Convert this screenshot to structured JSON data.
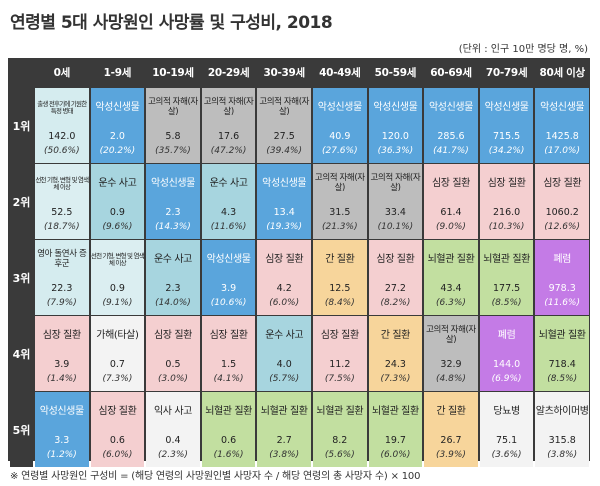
{
  "title": "연령별 5대 사망원인 사망률 및 구성비, 2018",
  "unit": "(단위 : 인구 10만 명당 명, %)",
  "footnote": "※ 연령별 사망원인 구성비 = (해당 연령의 사망원인별 사망자 수 / 해당 연령의 총 사망자 수) × 100",
  "colors": {
    "cancer": "#5aa5dc",
    "heart": "#f4cfd0",
    "transport": "#a7d5df",
    "suicide": "#bdbdbd",
    "cerebro": "#c2dfa0",
    "liver": "#f7d59b",
    "pneumonia": "#c47be6",
    "perinatal": "#d5ecef",
    "congenital": "#dbeef1",
    "sids": "#d5ecef",
    "fall": "#f3f3f3",
    "diabetes": "#f3f3f3",
    "alzheimer": "#f3f3f3",
    "assault": "#f3f3f3"
  },
  "chart_data": {
    "type": "table",
    "title": "연령별 5대 사망원인 사망률 및 구성비, 2018",
    "columns": [
      "0세",
      "1-9세",
      "10-19세",
      "20-29세",
      "30-39세",
      "40-49세",
      "50-59세",
      "60-69세",
      "70-79세",
      "80세 이상"
    ],
    "row_labels": [
      "1위",
      "2위",
      "3위",
      "4위",
      "5위"
    ],
    "rows": [
      [
        {
          "cause": "출생 전후기에 기원한 특정 병태",
          "cat": "perinatal",
          "rate": "142.0",
          "pct": "(50.6%)"
        },
        {
          "cause": "악성신생물",
          "cat": "cancer",
          "rate": "2.0",
          "pct": "(20.2%)"
        },
        {
          "cause": "고의적 자해(자살)",
          "cat": "suicide",
          "rate": "5.8",
          "pct": "(35.7%)"
        },
        {
          "cause": "고의적 자해(자살)",
          "cat": "suicide",
          "rate": "17.6",
          "pct": "(47.2%)"
        },
        {
          "cause": "고의적 자해(자살)",
          "cat": "suicide",
          "rate": "27.5",
          "pct": "(39.4%)"
        },
        {
          "cause": "악성신생물",
          "cat": "cancer",
          "rate": "40.9",
          "pct": "(27.6%)"
        },
        {
          "cause": "악성신생물",
          "cat": "cancer",
          "rate": "120.0",
          "pct": "(36.3%)"
        },
        {
          "cause": "악성신생물",
          "cat": "cancer",
          "rate": "285.6",
          "pct": "(41.7%)"
        },
        {
          "cause": "악성신생물",
          "cat": "cancer",
          "rate": "715.5",
          "pct": "(34.2%)"
        },
        {
          "cause": "악성신생물",
          "cat": "cancer",
          "rate": "1425.8",
          "pct": "(17.0%)"
        }
      ],
      [
        {
          "cause": "선천 기형, 변형 및 염색체 이상",
          "cat": "congenital",
          "rate": "52.5",
          "pct": "(18.7%)"
        },
        {
          "cause": "운수 사고",
          "cat": "transport",
          "rate": "0.9",
          "pct": "(9.6%)"
        },
        {
          "cause": "악성신생물",
          "cat": "cancer",
          "rate": "2.3",
          "pct": "(14.3%)"
        },
        {
          "cause": "운수 사고",
          "cat": "transport",
          "rate": "4.3",
          "pct": "(11.6%)"
        },
        {
          "cause": "악성신생물",
          "cat": "cancer",
          "rate": "13.4",
          "pct": "(19.3%)"
        },
        {
          "cause": "고의적 자해(자살)",
          "cat": "suicide",
          "rate": "31.5",
          "pct": "(21.3%)"
        },
        {
          "cause": "고의적 자해(자살)",
          "cat": "suicide",
          "rate": "33.4",
          "pct": "(10.1%)"
        },
        {
          "cause": "심장 질환",
          "cat": "heart",
          "rate": "61.4",
          "pct": "(9.0%)"
        },
        {
          "cause": "심장 질환",
          "cat": "heart",
          "rate": "216.0",
          "pct": "(10.3%)"
        },
        {
          "cause": "심장 질환",
          "cat": "heart",
          "rate": "1060.2",
          "pct": "(12.6%)"
        }
      ],
      [
        {
          "cause": "영아 돌연사 증후군",
          "cat": "sids",
          "rate": "22.3",
          "pct": "(7.9%)"
        },
        {
          "cause": "선천 기형, 변형 및 염색체 이상",
          "cat": "congenital",
          "rate": "0.9",
          "pct": "(9.1%)"
        },
        {
          "cause": "운수 사고",
          "cat": "transport",
          "rate": "2.3",
          "pct": "(14.0%)"
        },
        {
          "cause": "악성신생물",
          "cat": "cancer",
          "rate": "3.9",
          "pct": "(10.6%)"
        },
        {
          "cause": "심장 질환",
          "cat": "heart",
          "rate": "4.2",
          "pct": "(6.0%)"
        },
        {
          "cause": "간 질환",
          "cat": "liver",
          "rate": "12.5",
          "pct": "(8.4%)"
        },
        {
          "cause": "심장 질환",
          "cat": "heart",
          "rate": "27.2",
          "pct": "(8.2%)"
        },
        {
          "cause": "뇌혈관 질환",
          "cat": "cerebro",
          "rate": "43.4",
          "pct": "(6.3%)"
        },
        {
          "cause": "뇌혈관 질환",
          "cat": "cerebro",
          "rate": "177.5",
          "pct": "(8.5%)"
        },
        {
          "cause": "폐렴",
          "cat": "pneumonia",
          "rate": "978.3",
          "pct": "(11.6%)"
        }
      ],
      [
        {
          "cause": "심장 질환",
          "cat": "heart",
          "rate": "3.9",
          "pct": "(1.4%)"
        },
        {
          "cause": "가해(타살)",
          "cat": "assault",
          "rate": "0.7",
          "pct": "(7.3%)"
        },
        {
          "cause": "심장 질환",
          "cat": "heart",
          "rate": "0.5",
          "pct": "(3.0%)"
        },
        {
          "cause": "심장 질환",
          "cat": "heart",
          "rate": "1.5",
          "pct": "(4.1%)"
        },
        {
          "cause": "운수 사고",
          "cat": "transport",
          "rate": "4.0",
          "pct": "(5.7%)"
        },
        {
          "cause": "심장 질환",
          "cat": "heart",
          "rate": "11.2",
          "pct": "(7.5%)"
        },
        {
          "cause": "간 질환",
          "cat": "liver",
          "rate": "24.3",
          "pct": "(7.3%)"
        },
        {
          "cause": "고의적 자해(자살)",
          "cat": "suicide",
          "rate": "32.9",
          "pct": "(4.8%)"
        },
        {
          "cause": "폐렴",
          "cat": "pneumonia",
          "rate": "144.0",
          "pct": "(6.9%)"
        },
        {
          "cause": "뇌혈관 질환",
          "cat": "cerebro",
          "rate": "718.4",
          "pct": "(8.5%)"
        }
      ],
      [
        {
          "cause": "악성신생물",
          "cat": "cancer",
          "rate": "3.3",
          "pct": "(1.2%)"
        },
        {
          "cause": "심장 질환",
          "cat": "heart",
          "rate": "0.6",
          "pct": "(6.0%)"
        },
        {
          "cause": "익사 사고",
          "cat": "fall",
          "rate": "0.4",
          "pct": "(2.3%)"
        },
        {
          "cause": "뇌혈관 질환",
          "cat": "cerebro",
          "rate": "0.6",
          "pct": "(1.6%)"
        },
        {
          "cause": "뇌혈관 질환",
          "cat": "cerebro",
          "rate": "2.7",
          "pct": "(3.8%)"
        },
        {
          "cause": "뇌혈관 질환",
          "cat": "cerebro",
          "rate": "8.2",
          "pct": "(5.6%)"
        },
        {
          "cause": "뇌혈관 질환",
          "cat": "cerebro",
          "rate": "19.7",
          "pct": "(6.0%)"
        },
        {
          "cause": "간 질환",
          "cat": "liver",
          "rate": "26.7",
          "pct": "(3.9%)"
        },
        {
          "cause": "당뇨병",
          "cat": "diabetes",
          "rate": "75.1",
          "pct": "(3.6%)"
        },
        {
          "cause": "알츠하이머병",
          "cat": "alzheimer",
          "rate": "315.8",
          "pct": "(3.8%)"
        }
      ]
    ]
  }
}
